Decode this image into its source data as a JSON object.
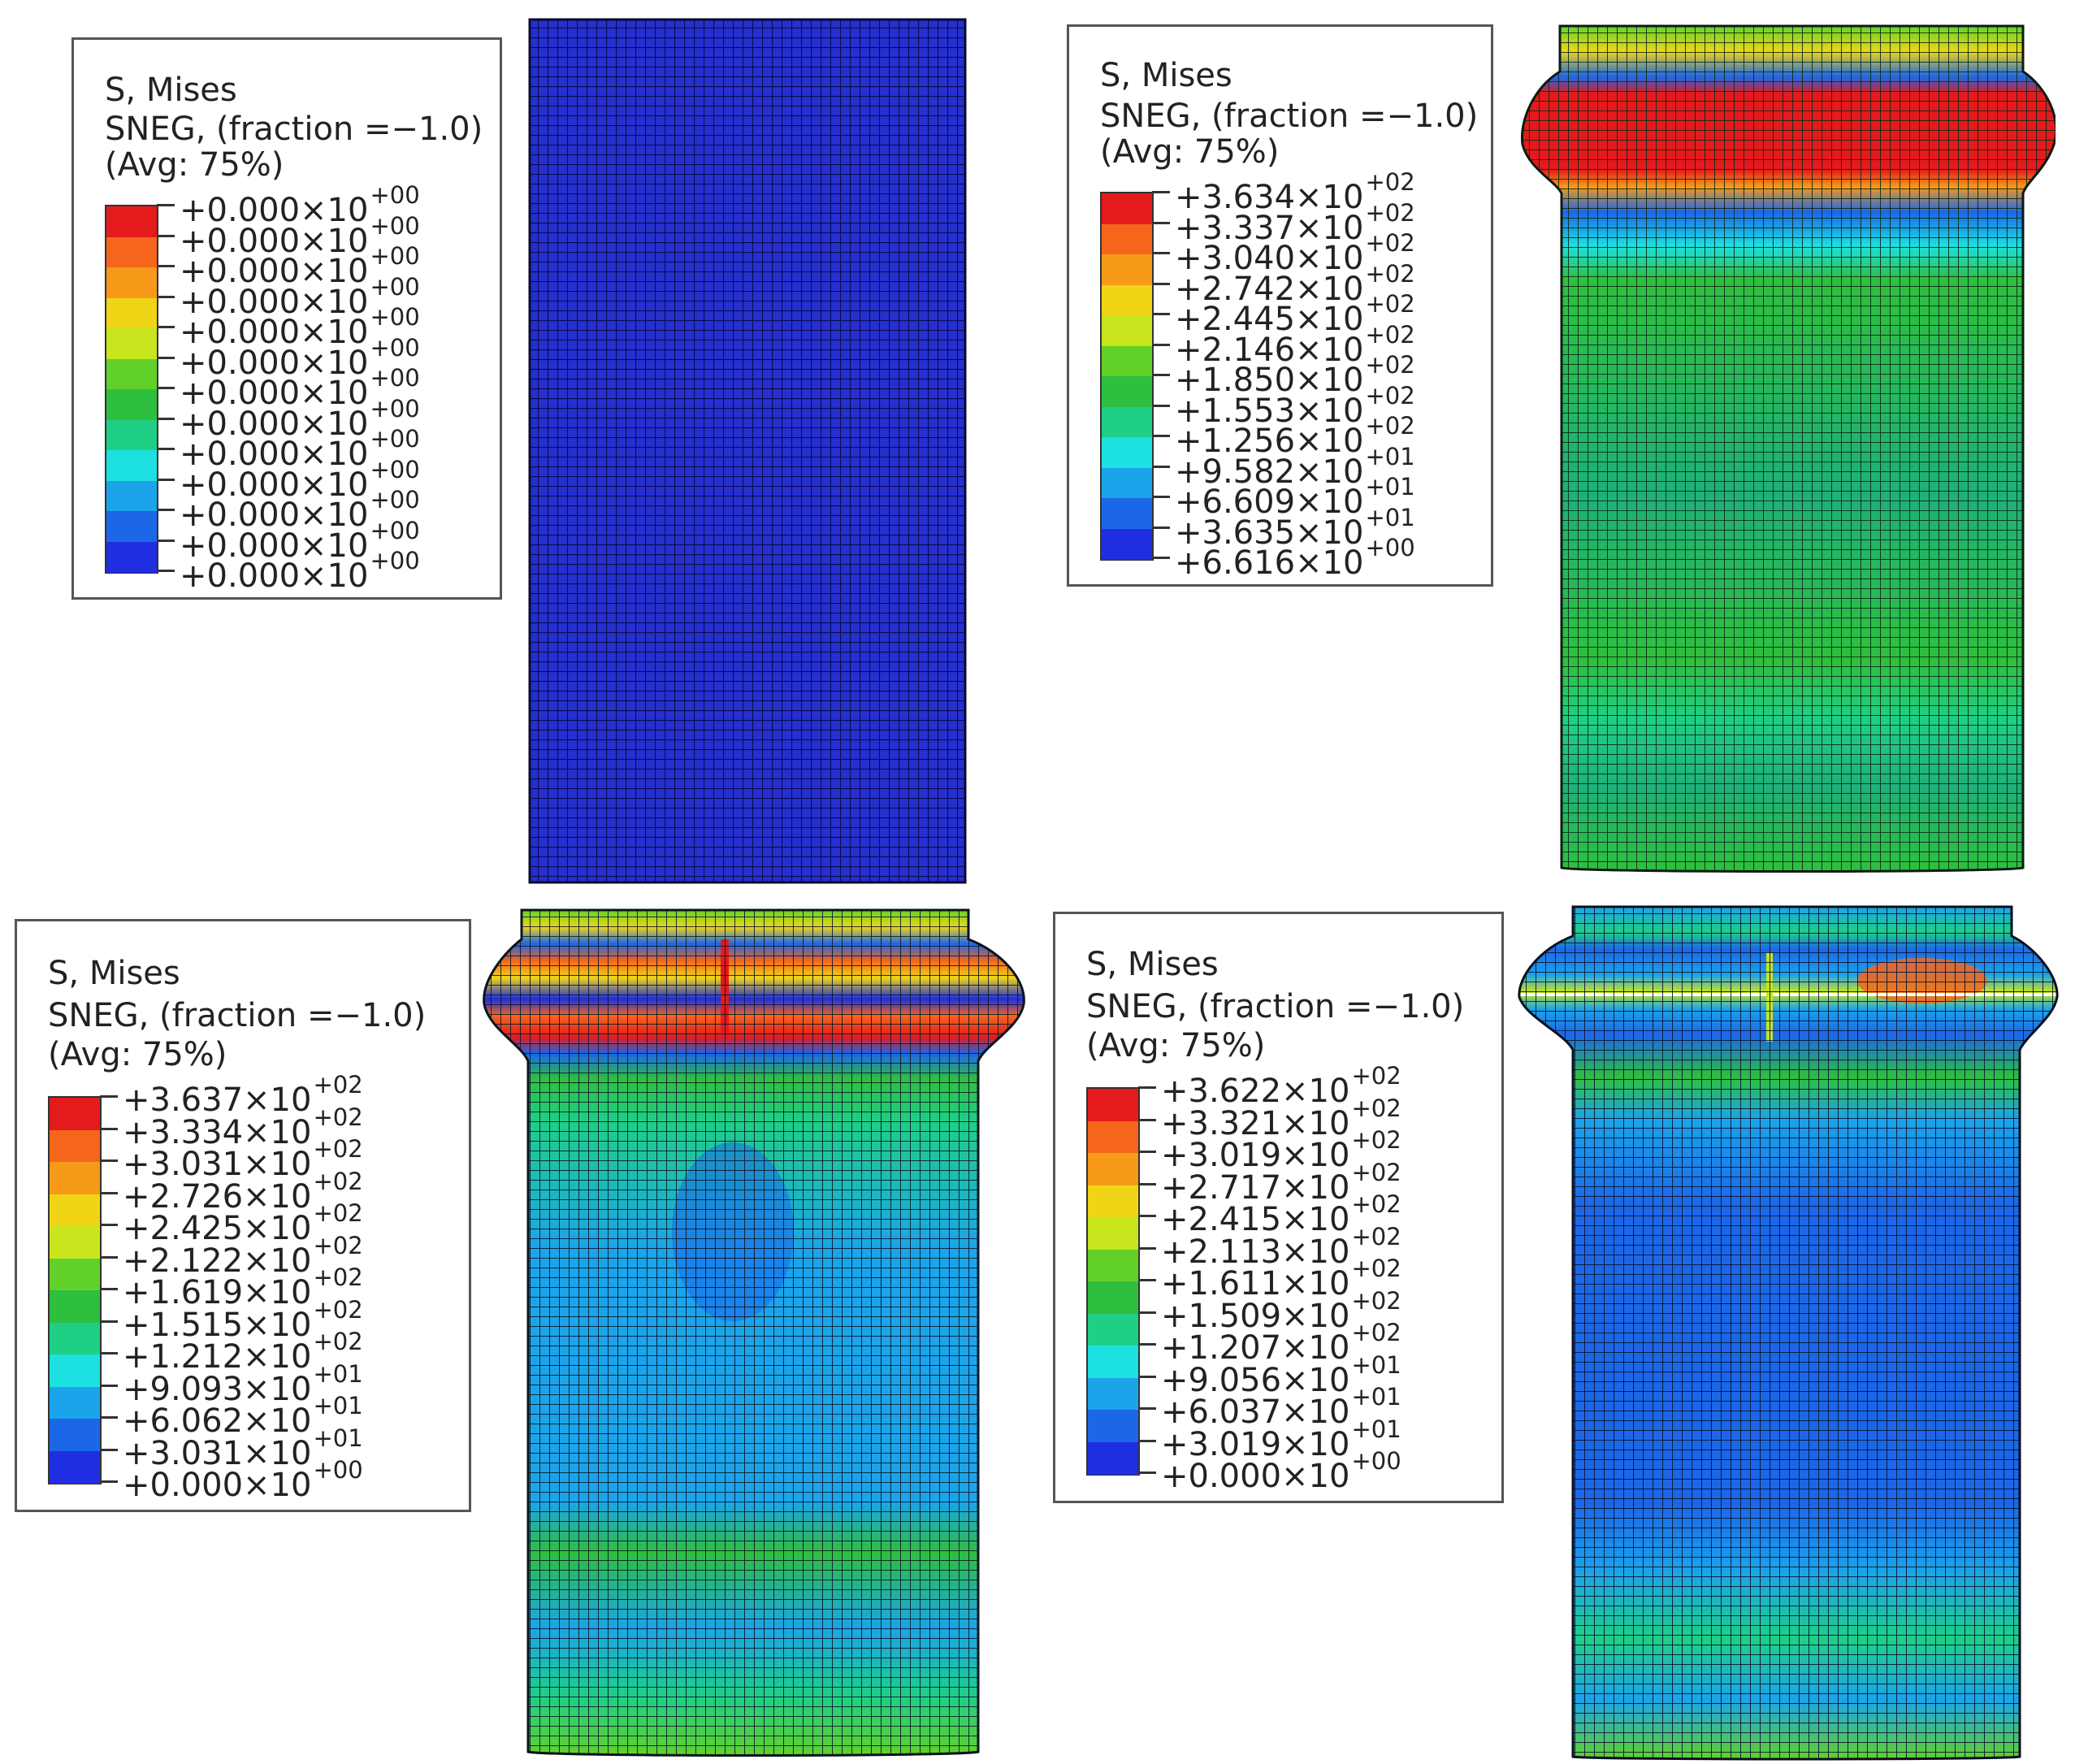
{
  "colors": {
    "contour": [
      "#e41a1c",
      "#f5661c",
      "#f79a1a",
      "#f0d516",
      "#c8e51e",
      "#61d12a",
      "#2fbf3e",
      "#1fcf86",
      "#1de0e0",
      "#1ba4ea",
      "#1c67e8",
      "#1f2ee0"
    ],
    "mesh_line": "#111111",
    "frame_border": "#555555"
  },
  "legends": [
    {
      "id": "initial",
      "title": "S, Mises",
      "line2": "SNEG, (fraction =−1.0)",
      "line3": "(Avg: 75%)",
      "values": [
        {
          "mantissa": "+0.000×10",
          "exponent": "+00"
        },
        {
          "mantissa": "+0.000×10",
          "exponent": "+00"
        },
        {
          "mantissa": "+0.000×10",
          "exponent": "+00"
        },
        {
          "mantissa": "+0.000×10",
          "exponent": "+00"
        },
        {
          "mantissa": "+0.000×10",
          "exponent": "+00"
        },
        {
          "mantissa": "+0.000×10",
          "exponent": "+00"
        },
        {
          "mantissa": "+0.000×10",
          "exponent": "+00"
        },
        {
          "mantissa": "+0.000×10",
          "exponent": "+00"
        },
        {
          "mantissa": "+0.000×10",
          "exponent": "+00"
        },
        {
          "mantissa": "+0.000×10",
          "exponent": "+00"
        },
        {
          "mantissa": "+0.000×10",
          "exponent": "+00"
        },
        {
          "mantissa": "+0.000×10",
          "exponent": "+00"
        },
        {
          "mantissa": "+0.000×10",
          "exponent": "+00"
        }
      ]
    },
    {
      "id": "stage-1",
      "title": "S, Mises",
      "line2": "SNEG, (fraction =−1.0)",
      "line3": "(Avg: 75%)",
      "values": [
        {
          "mantissa": "+3.634×10",
          "exponent": "+02"
        },
        {
          "mantissa": "+3.337×10",
          "exponent": "+02"
        },
        {
          "mantissa": "+3.040×10",
          "exponent": "+02"
        },
        {
          "mantissa": "+2.742×10",
          "exponent": "+02"
        },
        {
          "mantissa": "+2.445×10",
          "exponent": "+02"
        },
        {
          "mantissa": "+2.146×10",
          "exponent": "+02"
        },
        {
          "mantissa": "+1.850×10",
          "exponent": "+02"
        },
        {
          "mantissa": "+1.553×10",
          "exponent": "+02"
        },
        {
          "mantissa": "+1.256×10",
          "exponent": "+02"
        },
        {
          "mantissa": "+9.582×10",
          "exponent": "+01"
        },
        {
          "mantissa": "+6.609×10",
          "exponent": "+01"
        },
        {
          "mantissa": "+3.635×10",
          "exponent": "+01"
        },
        {
          "mantissa": "+6.616×10",
          "exponent": "+00"
        }
      ]
    },
    {
      "id": "stage-2",
      "title": "S, Mises",
      "line2": "SNEG, (fraction =−1.0)",
      "line3": "(Avg: 75%)",
      "values": [
        {
          "mantissa": "+3.637×10",
          "exponent": "+02"
        },
        {
          "mantissa": "+3.334×10",
          "exponent": "+02"
        },
        {
          "mantissa": "+3.031×10",
          "exponent": "+02"
        },
        {
          "mantissa": "+2.726×10",
          "exponent": "+02"
        },
        {
          "mantissa": "+2.425×10",
          "exponent": "+02"
        },
        {
          "mantissa": "+2.122×10",
          "exponent": "+02"
        },
        {
          "mantissa": "+1.619×10",
          "exponent": "+02"
        },
        {
          "mantissa": "+1.515×10",
          "exponent": "+02"
        },
        {
          "mantissa": "+1.212×10",
          "exponent": "+02"
        },
        {
          "mantissa": "+9.093×10",
          "exponent": "+01"
        },
        {
          "mantissa": "+6.062×10",
          "exponent": "+01"
        },
        {
          "mantissa": "+3.031×10",
          "exponent": "+01"
        },
        {
          "mantissa": "+0.000×10",
          "exponent": "+00"
        }
      ]
    },
    {
      "id": "stage-3",
      "title": "S, Mises",
      "line2": "SNEG, (fraction =−1.0)",
      "line3": "(Avg: 75%)",
      "values": [
        {
          "mantissa": "+3.622×10",
          "exponent": "+02"
        },
        {
          "mantissa": "+3.321×10",
          "exponent": "+02"
        },
        {
          "mantissa": "+3.019×10",
          "exponent": "+02"
        },
        {
          "mantissa": "+2.717×10",
          "exponent": "+02"
        },
        {
          "mantissa": "+2.415×10",
          "exponent": "+02"
        },
        {
          "mantissa": "+2.113×10",
          "exponent": "+02"
        },
        {
          "mantissa": "+1.611×10",
          "exponent": "+02"
        },
        {
          "mantissa": "+1.509×10",
          "exponent": "+02"
        },
        {
          "mantissa": "+1.207×10",
          "exponent": "+02"
        },
        {
          "mantissa": "+9.056×10",
          "exponent": "+01"
        },
        {
          "mantissa": "+6.037×10",
          "exponent": "+01"
        },
        {
          "mantissa": "+3.019×10",
          "exponent": "+01"
        },
        {
          "mantissa": "+0.000×10",
          "exponent": "+00"
        }
      ]
    }
  ]
}
